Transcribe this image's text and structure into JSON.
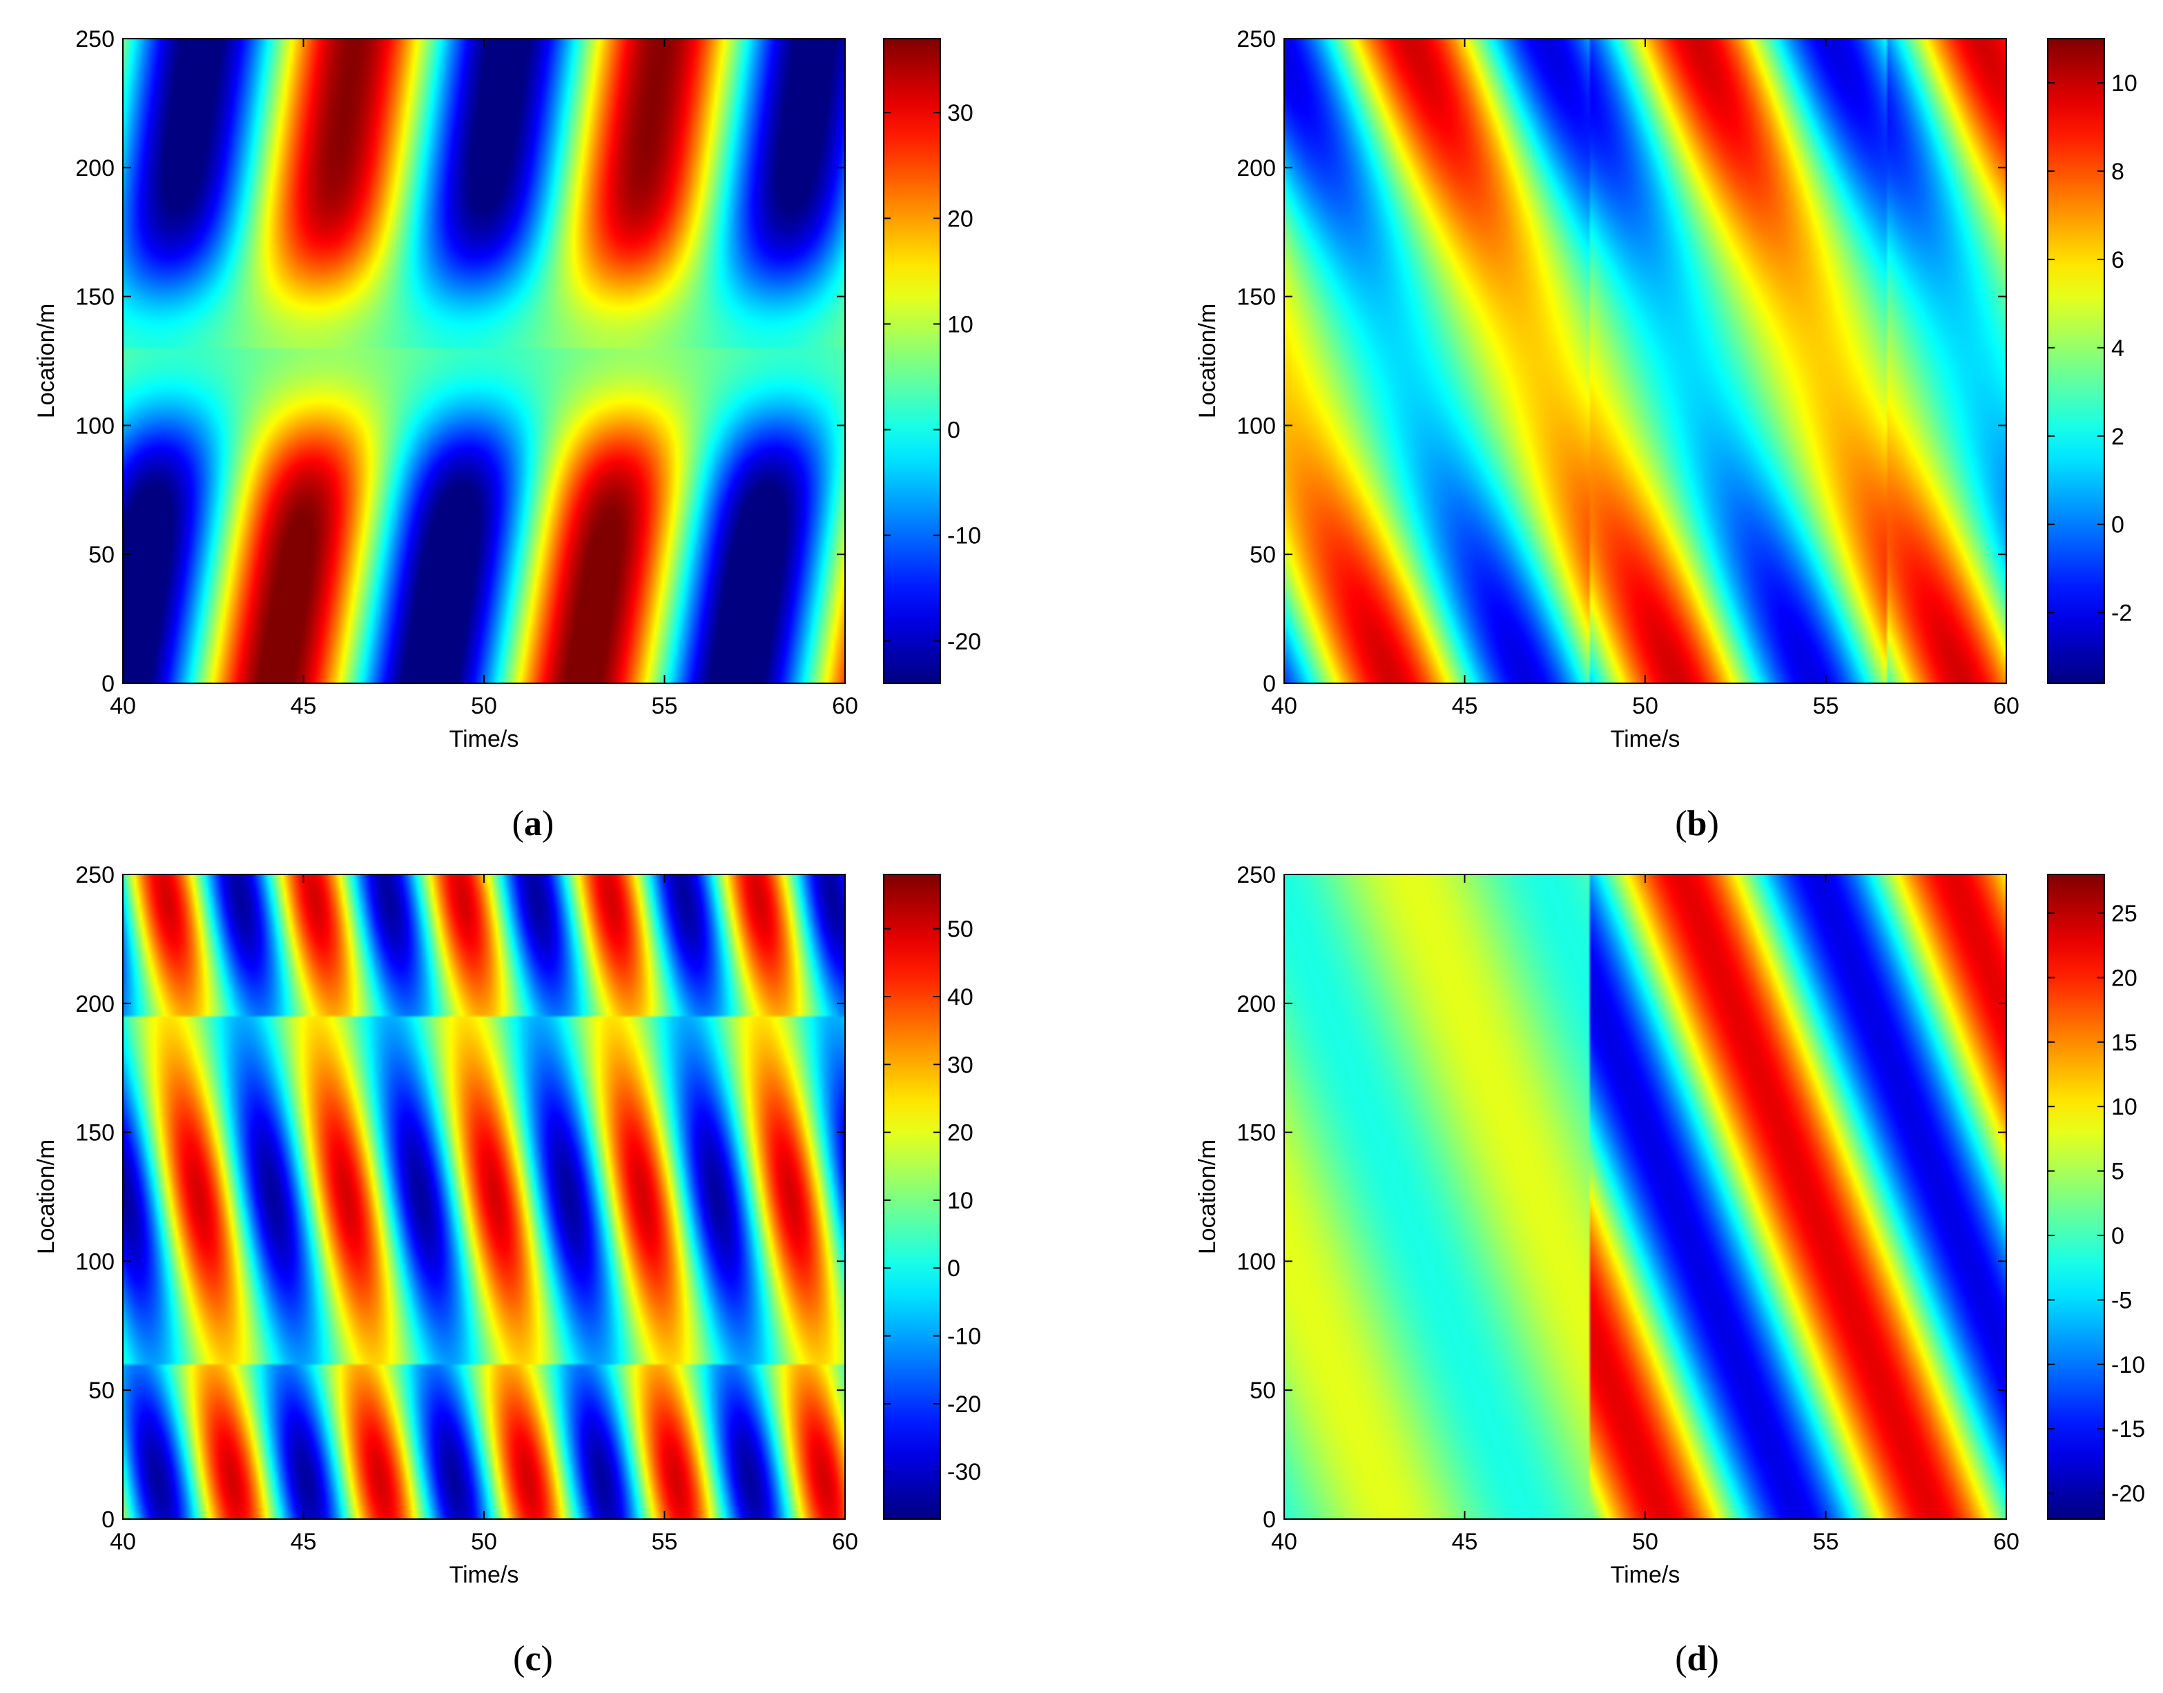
{
  "chart_data": [
    {
      "type": "heatmap",
      "caption": "(a)",
      "caption_letter": "a",
      "xlabel": "Time/s",
      "ylabel": "Location/m",
      "xlim": [
        40,
        60
      ],
      "ylim": [
        0,
        250
      ],
      "xticks": [
        "40",
        "45",
        "50",
        "55",
        "60"
      ],
      "yticks": [
        "0",
        "50",
        "100",
        "150",
        "200",
        "250"
      ],
      "colorbar": {
        "min": -24,
        "max": 37,
        "ticks": [
          -20,
          -10,
          0,
          10,
          20,
          30
        ],
        "tick_labels": [
          "-20",
          "-10",
          "0",
          "10",
          "20",
          "30"
        ]
      },
      "field": {
        "kind": "two-bands",
        "amp_low": 30,
        "amp_high": 28,
        "period": 8.5,
        "phase_low": 44.3,
        "phase_high": 45.8,
        "bias": 5,
        "band_center": 130,
        "band_width": 35
      }
    },
    {
      "type": "heatmap",
      "caption": "(b)",
      "caption_letter": "b",
      "xlabel": "Time/s",
      "ylabel": "Location/m",
      "xlim": [
        40,
        60
      ],
      "ylim": [
        0,
        250
      ],
      "xticks": [
        "40",
        "45",
        "50",
        "55",
        "60"
      ],
      "yticks": [
        "0",
        "50",
        "100",
        "150",
        "200",
        "250"
      ],
      "colorbar": {
        "min": -3.6,
        "max": 11,
        "ticks": [
          -2,
          0,
          2,
          4,
          6,
          8,
          10
        ],
        "tick_labels": [
          "-2",
          "0",
          "2",
          "4",
          "6",
          "8",
          "10"
        ]
      },
      "field": {
        "kind": "sloped-waves",
        "amp": 6,
        "bias": 3.8,
        "period": 7.5,
        "slope": 0.028,
        "phase": 43.0,
        "discontinuities": [
          48.5,
          56.7
        ]
      }
    },
    {
      "type": "heatmap",
      "caption": "(c)",
      "caption_letter": "c",
      "xlabel": "Time/s",
      "ylabel": "Location/m",
      "xlim": [
        40,
        60
      ],
      "ylim": [
        0,
        250
      ],
      "xticks": [
        "40",
        "45",
        "50",
        "55",
        "60"
      ],
      "yticks": [
        "0",
        "50",
        "100",
        "150",
        "200",
        "250"
      ],
      "colorbar": {
        "min": -37,
        "max": 58,
        "ticks": [
          -30,
          -20,
          -10,
          0,
          10,
          20,
          30,
          40,
          50
        ],
        "tick_labels": [
          "-30",
          "-20",
          "-10",
          "0",
          "10",
          "20",
          "30",
          "40",
          "50"
        ]
      },
      "field": {
        "kind": "three-bands",
        "amp": 42,
        "period": 4.1,
        "bias": 8,
        "phase": 43.2
      }
    },
    {
      "type": "heatmap",
      "caption": "(d)",
      "caption_letter": "d",
      "xlabel": "Time/s",
      "ylabel": "Location/m",
      "xlim": [
        40,
        60
      ],
      "ylim": [
        0,
        250
      ],
      "xticks": [
        "40",
        "45",
        "50",
        "55",
        "60"
      ],
      "yticks": [
        "0",
        "50",
        "100",
        "150",
        "200",
        "250"
      ],
      "colorbar": {
        "min": -22,
        "max": 28,
        "ticks": [
          -20,
          -15,
          -10,
          -5,
          0,
          5,
          10,
          15,
          20,
          25
        ],
        "tick_labels": [
          "-20",
          "-15",
          "-10",
          "-5",
          "0",
          "5",
          "10",
          "15",
          "20",
          "25"
        ]
      },
      "field": {
        "kind": "segmented",
        "amp": 20,
        "bias": 3,
        "period": 7.5,
        "slope": 0.028,
        "phase": 50.5,
        "discontinuities": [
          48.5,
          56.7
        ]
      }
    }
  ]
}
